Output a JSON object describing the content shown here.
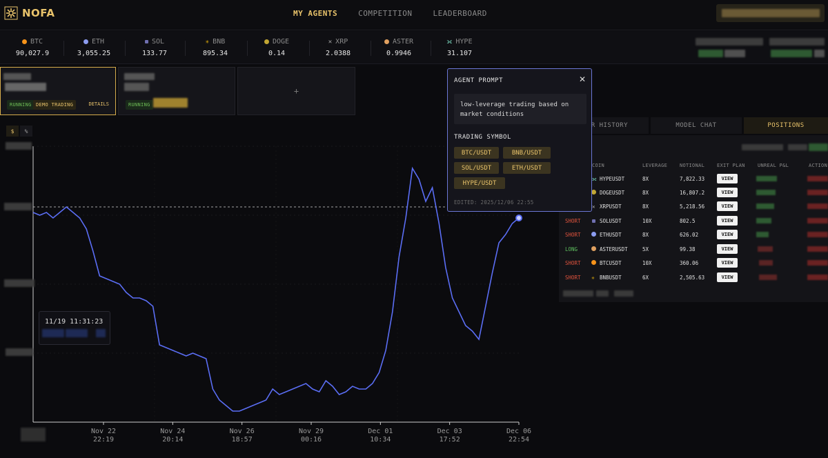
{
  "header": {
    "brand": "NOFA",
    "nav": [
      "MY AGENTS",
      "COMPETITION",
      "LEADERBOARD"
    ],
    "active_nav": "MY AGENTS"
  },
  "ticker": [
    {
      "symbol": "BTC",
      "price": "90,027.9",
      "color": "#f7931a"
    },
    {
      "symbol": "ETH",
      "price": "3,055.25",
      "color": "#8c9cf0"
    },
    {
      "symbol": "SOL",
      "price": "133.77",
      "color": "#6f6fb0"
    },
    {
      "symbol": "BNB",
      "price": "895.34",
      "color": "#f0b90b"
    },
    {
      "symbol": "DOGE",
      "price": "0.14",
      "color": "#c2a633"
    },
    {
      "symbol": "XRP",
      "price": "2.0388",
      "color": "#aaaaaa"
    },
    {
      "symbol": "ASTER",
      "price": "0.9946",
      "color": "#e0a060"
    },
    {
      "symbol": "HYPE",
      "price": "31.107",
      "color": "#7fe3c8"
    }
  ],
  "agents": {
    "card1": {
      "status": "RUNNING",
      "mode": "DEMO TRADING",
      "details": "DETAILS"
    },
    "card2": {
      "status": "RUNNING"
    },
    "add_label": "+"
  },
  "chart_controls": {
    "unit_usd": "$",
    "unit_pct": "%"
  },
  "chart_data": {
    "type": "line",
    "x_tick_labels": [
      [
        "Nov 22",
        "22:19"
      ],
      [
        "Nov 24",
        "20:14"
      ],
      [
        "Nov 26",
        "18:57"
      ],
      [
        "Nov 29",
        "00:16"
      ],
      [
        "Dec 01",
        "10:34"
      ],
      [
        "Dec 03",
        "17:52"
      ],
      [
        "Dec 06",
        "22:54"
      ]
    ],
    "series": [
      {
        "color": "#5b6ef5"
      }
    ],
    "values": [
      76,
      75,
      76,
      74,
      76,
      78,
      76,
      74,
      70,
      62,
      53,
      52,
      51,
      50,
      47,
      45,
      45,
      44,
      42,
      28,
      27,
      26,
      25,
      24,
      25,
      24,
      23,
      12,
      8,
      6,
      4,
      4,
      5,
      6,
      7,
      8,
      12,
      10,
      11,
      12,
      13,
      14,
      12,
      11,
      15,
      13,
      10,
      11,
      13,
      12,
      12,
      14,
      18,
      26,
      40,
      60,
      74,
      92,
      88,
      80,
      85,
      72,
      56,
      45,
      40,
      35,
      33,
      30,
      42,
      54,
      65,
      68,
      72,
      74
    ],
    "reference_value": 78,
    "tooltip_time": "11/19 11:31:23"
  },
  "panel": {
    "tabs": [
      "ORDER HISTORY",
      "MODEL CHAT",
      "POSITIONS"
    ],
    "tab_visible_labels": [
      "ER HISTORY",
      "MODEL CHAT",
      "POSITIONS"
    ],
    "active_tab": "POSITIONS",
    "header_partial": "H",
    "columns": [
      "COIN",
      "LEVERAGE",
      "NOTIONAL",
      "EXIT PLAN",
      "UNREAL P&L",
      "ACTION"
    ],
    "rows": [
      {
        "side": "",
        "coin": "HYPEUSDT",
        "leverage": "8X",
        "notional": "7,822.33",
        "exit": "VIEW",
        "icon_color": "#7fe3c8",
        "pnl": "positive"
      },
      {
        "side": "",
        "coin": "DOGEUSDT",
        "leverage": "8X",
        "notional": "16,807.2",
        "exit": "VIEW",
        "icon_color": "#c2a633",
        "pnl": "positive"
      },
      {
        "side": "",
        "coin": "XRPUSDT",
        "leverage": "8X",
        "notional": "5,218.56",
        "exit": "VIEW",
        "icon_color": "#aaaaaa",
        "pnl": "positive"
      },
      {
        "side": "SHORT",
        "coin": "SOLUSDT",
        "leverage": "10X",
        "notional": "802.5",
        "exit": "VIEW",
        "icon_color": "#6f6fb0",
        "pnl": "positive"
      },
      {
        "side": "SHORT",
        "coin": "ETHUSDT",
        "leverage": "8X",
        "notional": "626.02",
        "exit": "VIEW",
        "icon_color": "#8c9cf0",
        "pnl": "positive"
      },
      {
        "side": "LONG",
        "coin": "ASTERUSDT",
        "leverage": "5X",
        "notional": "99.38",
        "exit": "VIEW",
        "icon_color": "#e0a060",
        "pnl": "negative"
      },
      {
        "side": "SHORT",
        "coin": "BTCUSDT",
        "leverage": "10X",
        "notional": "360.06",
        "exit": "VIEW",
        "icon_color": "#f7931a",
        "pnl": "negative"
      },
      {
        "side": "SHORT",
        "coin": "BNBUSDT",
        "leverage": "6X",
        "notional": "2,505.63",
        "exit": "VIEW",
        "icon_color": "#f0b90b",
        "pnl": "negative"
      }
    ]
  },
  "modal": {
    "title": "AGENT PROMPT",
    "prompt_line1": "low-leverage trading based on",
    "prompt_line2": "market conditions",
    "symbols_title": "TRADING SYMBOL",
    "symbols": [
      "BTC/USDT",
      "BNB/USDT",
      "SOL/USDT",
      "ETH/USDT",
      "HYPE/USDT"
    ],
    "edited": "EDITED: 2025/12/06 22:55",
    "close": "✕"
  }
}
